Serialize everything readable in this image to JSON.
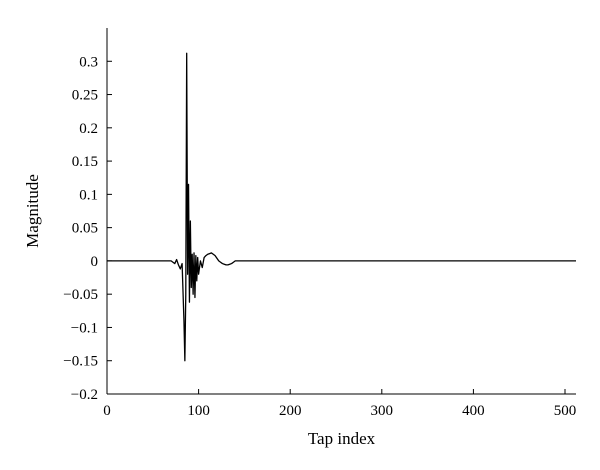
{
  "chart_data": {
    "type": "line",
    "xlabel": "Tap index",
    "ylabel": "Magnitude",
    "xlim": [
      0,
      512
    ],
    "ylim": [
      -0.2,
      0.35
    ],
    "xticks": [
      0,
      100,
      200,
      300,
      400,
      500
    ],
    "xtick_labels": [
      "0",
      "100",
      "200",
      "300",
      "400",
      "500"
    ],
    "yticks": [
      -0.2,
      -0.15,
      -0.1,
      -0.05,
      0,
      0.05,
      0.1,
      0.15,
      0.2,
      0.25,
      0.3
    ],
    "ytick_labels": [
      "−0.2",
      "−0.15",
      "−0.1",
      "−0.05",
      "0",
      "0.05",
      "0.1",
      "0.15",
      "0.2",
      "0.25",
      "0.3"
    ],
    "grid": false,
    "line_color": "#000000",
    "series": [
      {
        "x": [
          0,
          70,
          72,
          74,
          76,
          78,
          80,
          82,
          84,
          85,
          86,
          87,
          88,
          89,
          90,
          91,
          92,
          93,
          94,
          95,
          96,
          97,
          98,
          99,
          100,
          102,
          104,
          106,
          108,
          110,
          112,
          114,
          116,
          118,
          120,
          122,
          124,
          126,
          128,
          130,
          132,
          134,
          136,
          138,
          140,
          142,
          145,
          512
        ],
        "y": [
          0,
          0,
          -0.002,
          -0.004,
          0.002,
          -0.006,
          -0.012,
          -0.004,
          -0.09,
          -0.15,
          -0.05,
          0.312,
          -0.02,
          0.115,
          -0.062,
          0.06,
          -0.04,
          0.01,
          -0.05,
          0.012,
          -0.055,
          0.008,
          -0.03,
          0.005,
          -0.02,
          0.0,
          -0.01,
          0.005,
          0.008,
          0.01,
          0.011,
          0.012,
          0.01,
          0.008,
          0.004,
          0.0,
          -0.002,
          -0.004,
          -0.005,
          -0.006,
          -0.006,
          -0.005,
          -0.004,
          -0.002,
          0.0,
          0.0,
          0.0,
          0.0
        ]
      }
    ]
  }
}
